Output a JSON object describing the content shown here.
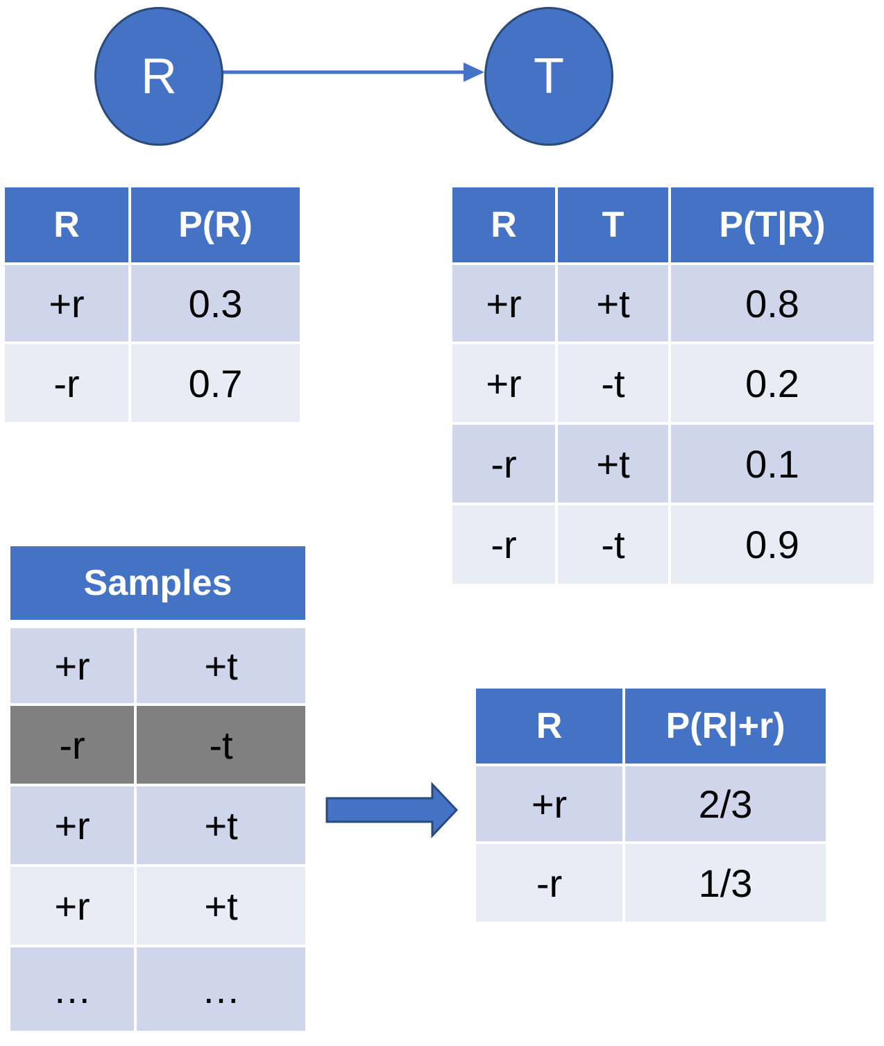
{
  "network": {
    "nodes": [
      {
        "id": "R",
        "label": "R"
      },
      {
        "id": "T",
        "label": "T"
      }
    ],
    "edges": [
      {
        "from": "R",
        "to": "T"
      }
    ]
  },
  "table_r": {
    "headers": [
      "R",
      "P(R)"
    ],
    "rows": [
      [
        "+r",
        "0.3"
      ],
      [
        "-r",
        "0.7"
      ]
    ]
  },
  "table_t_given_r": {
    "headers": [
      "R",
      "T",
      "P(T|R)"
    ],
    "rows": [
      [
        "+r",
        "+t",
        "0.8"
      ],
      [
        "+r",
        "-t",
        "0.2"
      ],
      [
        "-r",
        "+t",
        "0.1"
      ],
      [
        "-r",
        "-t",
        "0.9"
      ]
    ]
  },
  "samples": {
    "header": "Samples",
    "rows": [
      [
        "+r",
        "+t"
      ],
      [
        "-r",
        "-t"
      ],
      [
        "+r",
        "+t"
      ],
      [
        "+r",
        "+t"
      ],
      [
        "…",
        "…"
      ]
    ],
    "rejected_row_index": 1
  },
  "result": {
    "headers": [
      "R",
      "P(R|+r)"
    ],
    "rows": [
      [
        "+r",
        "2/3"
      ],
      [
        "-r",
        "1/3"
      ]
    ]
  },
  "colors": {
    "header": "#4472c4",
    "row_dark": "#cfd5ea",
    "row_light": "#e9ebf5",
    "rejected": "#808080",
    "node_border": "#2a4a7a"
  }
}
